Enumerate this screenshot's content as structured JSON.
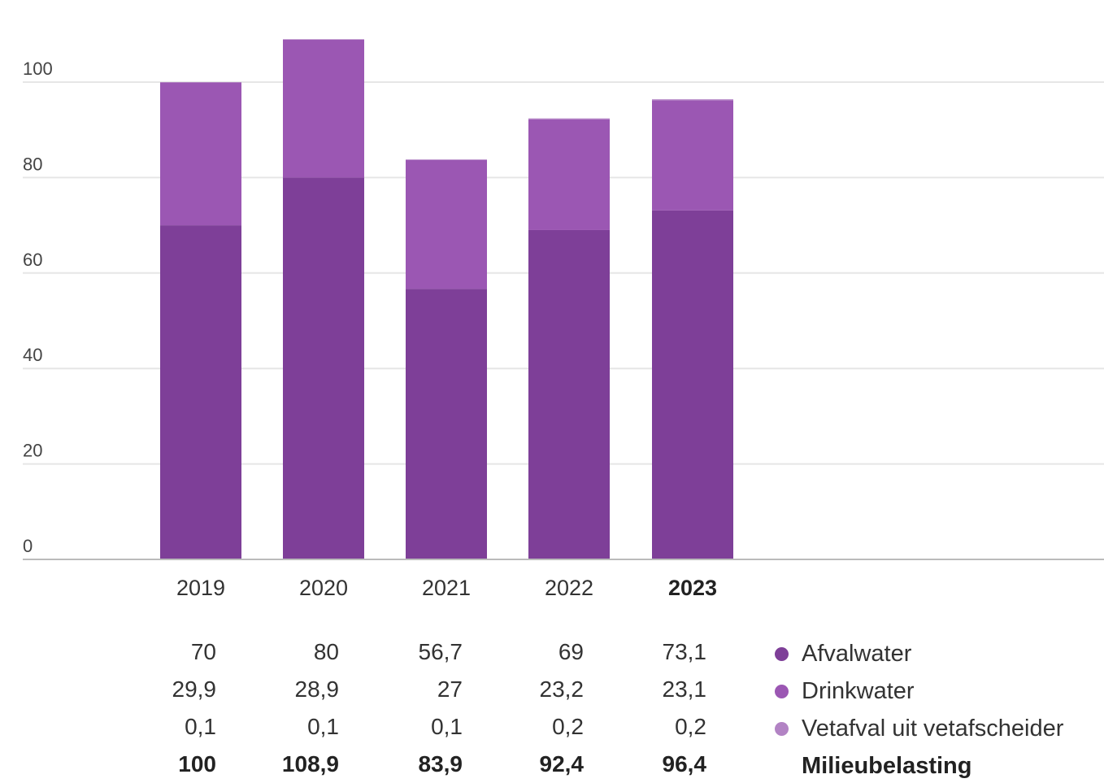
{
  "chart_data": {
    "type": "bar",
    "stacked": true,
    "categories": [
      "2019",
      "2020",
      "2021",
      "2022",
      "2023"
    ],
    "highlight_category": "2023",
    "ylim": [
      0,
      100
    ],
    "yticks": [
      0,
      20,
      40,
      60,
      80,
      100
    ],
    "grid": true,
    "series": [
      {
        "name": "Afvalwater",
        "values": [
          "70",
          "80",
          "56,7",
          "69",
          "73,1"
        ],
        "numeric": [
          70,
          80,
          56.7,
          69,
          73.1
        ],
        "color": "#7e3f98"
      },
      {
        "name": "Drinkwater",
        "values": [
          "29,9",
          "28,9",
          "27",
          "23,2",
          "23,1"
        ],
        "numeric": [
          29.9,
          28.9,
          27,
          23.2,
          23.1
        ],
        "color": "#9b57b3"
      },
      {
        "name": "Vetafval uit vetafscheider",
        "values": [
          "0,1",
          "0,1",
          "0,1",
          "0,2",
          "0,2"
        ],
        "numeric": [
          0.1,
          0.1,
          0.1,
          0.2,
          0.2
        ],
        "color": "#b283c4"
      }
    ],
    "totals": {
      "name": "Milieubelasting",
      "values": [
        "100",
        "108,9",
        "83,9",
        "92,4",
        "96,4"
      ],
      "numeric": [
        100,
        108.9,
        83.9,
        92.4,
        96.4
      ]
    },
    "legend_placement": "right of value table"
  }
}
